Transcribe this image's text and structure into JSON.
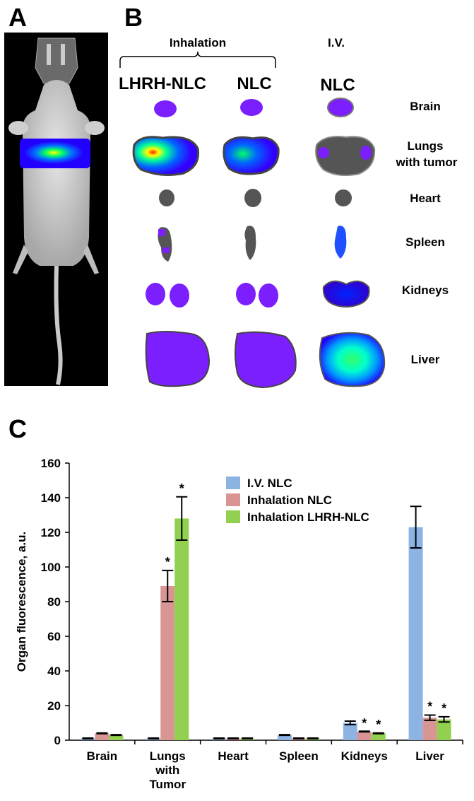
{
  "panels": {
    "a_label": "A",
    "b_label": "B",
    "c_label": "C"
  },
  "panel_b": {
    "group_inhalation": "Inhalation",
    "group_iv": "I.V.",
    "col_labels": [
      "LHRH-NLC",
      "NLC",
      "NLC"
    ],
    "organ_labels": [
      [
        "Brain"
      ],
      [
        "Lungs",
        "with tumor"
      ],
      [
        "Heart"
      ],
      [
        "Spleen"
      ],
      [
        "Kidneys"
      ],
      [
        "Liver"
      ]
    ]
  },
  "colors": {
    "iv": "#8db3e2",
    "inh_nlc": "#d99594",
    "inh_lhrh": "#92d050",
    "organ_purple": "#7b1fff",
    "organ_blue": "#1f4fff",
    "organ_dark": "#555555"
  },
  "chart_data": {
    "type": "bar",
    "ylabel": "Organ fluorescence, a.u.",
    "ylim": [
      0,
      160
    ],
    "yticks": [
      0,
      20,
      40,
      60,
      80,
      100,
      120,
      140,
      160
    ],
    "categories": [
      [
        "Brain"
      ],
      [
        "Lungs",
        "with",
        "Tumor"
      ],
      [
        "Heart"
      ],
      [
        "Spleen"
      ],
      [
        "Kidneys"
      ],
      [
        "Liver"
      ]
    ],
    "legend_position": "top-right",
    "series": [
      {
        "name": "I.V. NLC",
        "color": "#8db3e2",
        "values": [
          1,
          1,
          1,
          3,
          10,
          123
        ],
        "errors": [
          0,
          0,
          0,
          0,
          1,
          12
        ],
        "stars": [
          false,
          false,
          false,
          false,
          false,
          false
        ]
      },
      {
        "name": "Inhalation NLC",
        "color": "#d99594",
        "values": [
          4,
          89,
          1,
          1,
          5,
          13
        ],
        "errors": [
          0,
          9,
          0,
          0,
          0,
          1.5
        ],
        "stars": [
          false,
          true,
          false,
          false,
          true,
          true
        ]
      },
      {
        "name": "Inhalation LHRH-NLC",
        "color": "#92d050",
        "values": [
          3,
          128,
          1,
          1,
          4,
          12
        ],
        "errors": [
          0,
          12.5,
          0,
          0,
          0,
          1.5
        ],
        "stars": [
          false,
          true,
          false,
          false,
          true,
          true
        ]
      }
    ],
    "star_symbol": "*"
  }
}
